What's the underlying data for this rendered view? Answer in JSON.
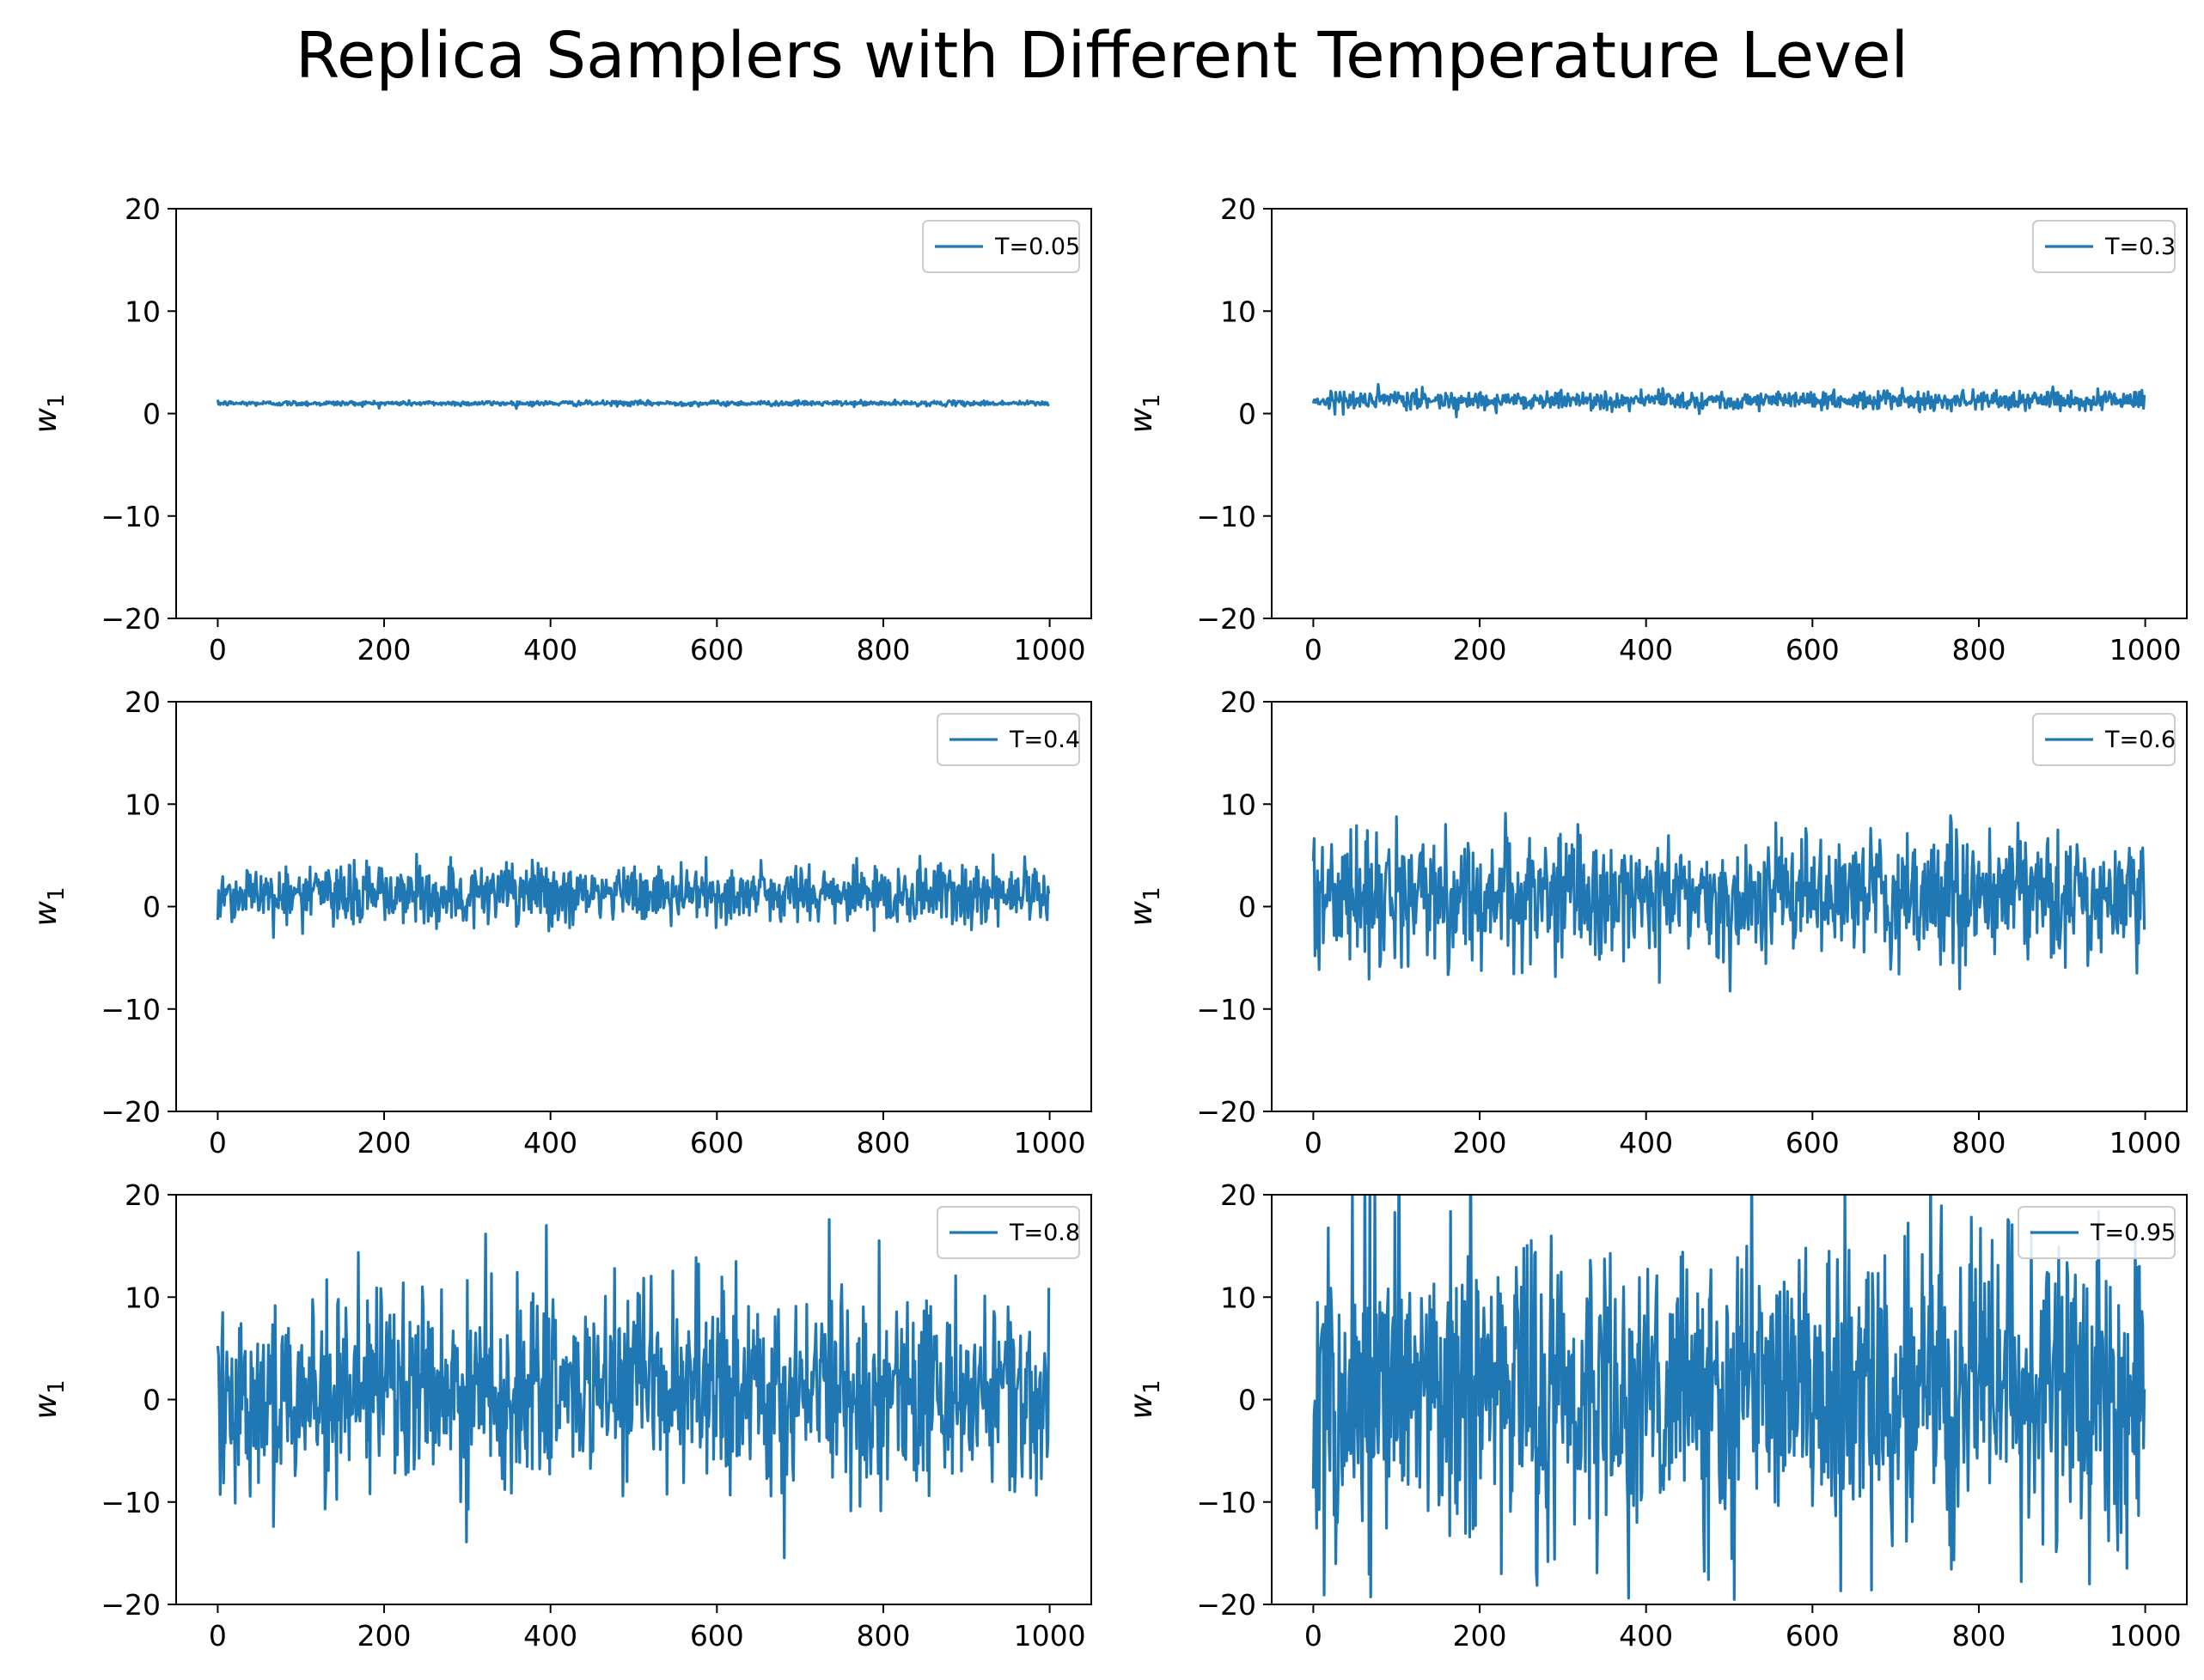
{
  "title": "Replica Samplers with Different Temperature Level",
  "colors": {
    "series": "#1f77b4",
    "axes": "#000000",
    "legend_border": "#cccccc"
  },
  "chart_data": [
    {
      "type": "line",
      "xlim": [
        -50,
        1050
      ],
      "ylim": [
        -20,
        20
      ],
      "xticks": [
        "0",
        "200",
        "400",
        "600",
        "800",
        "1000"
      ],
      "yticks": [
        "20",
        "10",
        "0",
        "−10",
        "−20"
      ],
      "ylabel": "w",
      "ylabel_sub": "1",
      "legend_position": "upper right",
      "series": [
        {
          "name": "T=0.05",
          "n_points": 1000,
          "mean": 1.0,
          "std": 0.12,
          "clip": true
        }
      ]
    },
    {
      "type": "line",
      "xlim": [
        -50,
        1050
      ],
      "ylim": [
        -20,
        20
      ],
      "xticks": [
        "0",
        "200",
        "400",
        "600",
        "800",
        "1000"
      ],
      "yticks": [
        "20",
        "10",
        "0",
        "−10",
        "−20"
      ],
      "ylabel": "w",
      "ylabel_sub": "1",
      "legend_position": "upper right",
      "series": [
        {
          "name": "T=0.3",
          "n_points": 1000,
          "mean": 1.3,
          "std": 0.45,
          "clip": true
        }
      ]
    },
    {
      "type": "line",
      "xlim": [
        -50,
        1050
      ],
      "ylim": [
        -20,
        20
      ],
      "xticks": [
        "0",
        "200",
        "400",
        "600",
        "800",
        "1000"
      ],
      "yticks": [
        "20",
        "10",
        "0",
        "−10",
        "−20"
      ],
      "ylabel": "w",
      "ylabel_sub": "1",
      "legend_position": "upper right",
      "series": [
        {
          "name": "T=0.4",
          "n_points": 1000,
          "mean": 1.2,
          "std": 1.5,
          "clip": true
        }
      ]
    },
    {
      "type": "line",
      "xlim": [
        -50,
        1050
      ],
      "ylim": [
        -20,
        20
      ],
      "xticks": [
        "0",
        "200",
        "400",
        "600",
        "800",
        "1000"
      ],
      "yticks": [
        "20",
        "10",
        "0",
        "−10",
        "−20"
      ],
      "ylabel": "w",
      "ylabel_sub": "1",
      "legend_position": "upper right",
      "series": [
        {
          "name": "T=0.6",
          "n_points": 1000,
          "mean": 1.0,
          "std": 3.0,
          "clip": true
        }
      ]
    },
    {
      "type": "line",
      "xlim": [
        -50,
        1050
      ],
      "ylim": [
        -20,
        20
      ],
      "xticks": [
        "0",
        "200",
        "400",
        "600",
        "800",
        "1000"
      ],
      "yticks": [
        "20",
        "10",
        "0",
        "−10",
        "−20"
      ],
      "ylabel": "w",
      "ylabel_sub": "1",
      "legend_position": "upper right",
      "series": [
        {
          "name": "T=0.8",
          "n_points": 1000,
          "mean": 0.8,
          "std": 4.8,
          "clip": true
        }
      ]
    },
    {
      "type": "line",
      "xlim": [
        -50,
        1050
      ],
      "ylim": [
        -20,
        20
      ],
      "xticks": [
        "0",
        "200",
        "400",
        "600",
        "800",
        "1000"
      ],
      "yticks": [
        "20",
        "10",
        "0",
        "−10",
        "−20"
      ],
      "ylabel": "w",
      "ylabel_sub": "1",
      "legend_position": "upper right",
      "series": [
        {
          "name": "T=0.95",
          "n_points": 1000,
          "mean": 1.0,
          "std": 7.5,
          "clip": true
        }
      ]
    }
  ]
}
